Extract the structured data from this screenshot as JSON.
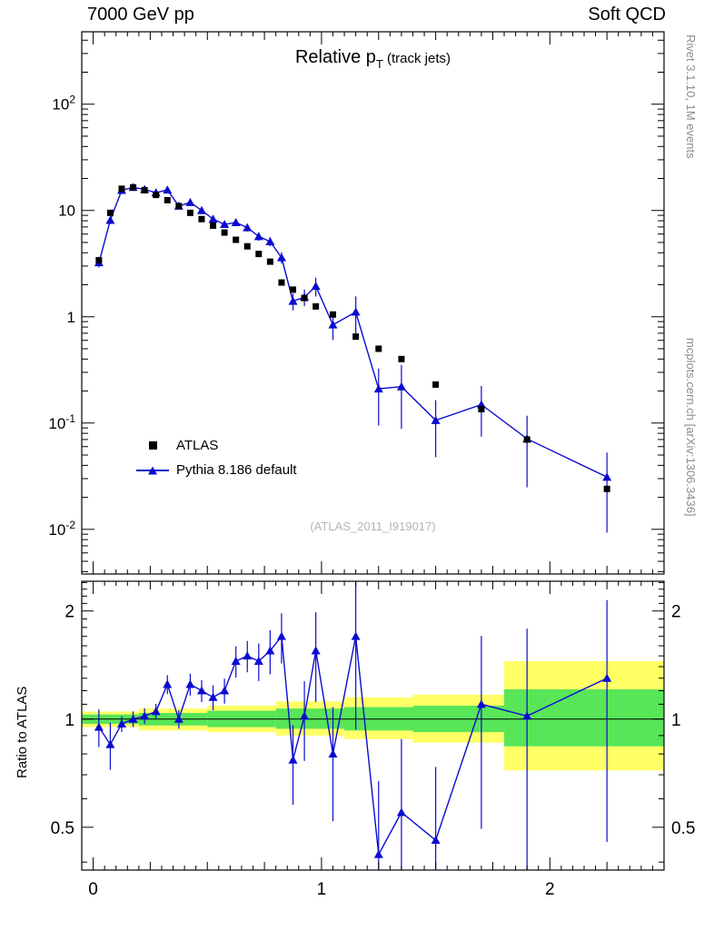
{
  "header": {
    "left": "7000 GeV pp",
    "right": "Soft QCD"
  },
  "title": {
    "pre": "Relative p",
    "sub": "T",
    "post": " (track jets)"
  },
  "side_labels": {
    "top": "Rivet 3.1.10, 1M events",
    "bottom": "mcplots.cern.ch [arXiv:1306.3436]"
  },
  "watermark": "(ATLAS_2011_I919017)",
  "ratio_ylabel": "Ratio to ATLAS",
  "legend": [
    {
      "label": "ATLAS",
      "marker": "square",
      "color": "#000000"
    },
    {
      "label": "Pythia 8.186 default",
      "marker": "triangle-line",
      "color": "#0b0bd0"
    }
  ],
  "colors": {
    "pythia_blue": "#0b0bd0",
    "atlas_black": "#000000",
    "band_yellow": "#ffff66",
    "band_green": "#58e558",
    "side_text_gray": "#8c8c8c",
    "watermark_gray": "#b5b5b5",
    "frame": "#000000"
  },
  "chart_data": [
    {
      "type": "scatter",
      "title": "Relative pT (track jets)",
      "xlabel": "",
      "ylabel": "",
      "ylog": true,
      "xlim": [
        -0.05,
        2.5
      ],
      "ylim": [
        0.0038,
        480
      ],
      "x_tick_values": [
        0,
        1,
        2
      ],
      "x_tick_labels": [
        "0",
        "1",
        "2"
      ],
      "y_tick_values": [
        0.01,
        0.1,
        1,
        10,
        100
      ],
      "y_tick_labels": [
        {
          "base": "10",
          "exp": "-2"
        },
        {
          "base": "10",
          "exp": "-1"
        },
        {
          "base": "1",
          "exp": ""
        },
        {
          "base": "10",
          "exp": ""
        },
        {
          "base": "10",
          "exp": "2"
        }
      ],
      "legend_position": "lower-left",
      "x": [
        0.025,
        0.075,
        0.125,
        0.175,
        0.225,
        0.275,
        0.325,
        0.375,
        0.425,
        0.475,
        0.525,
        0.575,
        0.625,
        0.675,
        0.725,
        0.775,
        0.825,
        0.875,
        0.925,
        0.975,
        1.05,
        1.15,
        1.25,
        1.35,
        1.5,
        1.7,
        1.9,
        2.25
      ],
      "series": [
        {
          "name": "ATLAS",
          "marker": "square",
          "color": "#000000",
          "y": [
            3.4,
            9.5,
            16.0,
            16.5,
            15.5,
            14.0,
            12.5,
            11.0,
            9.5,
            8.3,
            7.2,
            6.2,
            5.3,
            4.6,
            3.9,
            3.3,
            2.1,
            1.8,
            1.5,
            1.25,
            1.05,
            0.65,
            0.5,
            0.4,
            0.23,
            0.135,
            0.07,
            0.024
          ]
        },
        {
          "name": "Pythia 8.186 default",
          "marker": "triangle",
          "color": "#0b0bd0",
          "y": [
            3.23,
            8.1,
            15.5,
            16.5,
            15.8,
            14.7,
            15.6,
            11.0,
            11.9,
            10.0,
            8.3,
            7.4,
            7.7,
            6.9,
            5.7,
            5.1,
            3.6,
            1.4,
            1.53,
            1.94,
            0.84,
            1.11,
            0.21,
            0.22,
            0.106,
            0.149,
            0.071,
            0.031
          ],
          "yerr_frac": [
            0.1,
            0.08,
            0.04,
            0.04,
            0.04,
            0.04,
            0.04,
            0.05,
            0.05,
            0.05,
            0.06,
            0.06,
            0.07,
            0.08,
            0.09,
            0.1,
            0.12,
            0.18,
            0.18,
            0.2,
            0.28,
            0.4,
            0.55,
            0.6,
            0.55,
            0.5,
            0.65,
            0.7
          ]
        }
      ]
    },
    {
      "type": "ratio",
      "ylabel": "Ratio to ATLAS",
      "ylog": true,
      "ylim": [
        0.38,
        2.42
      ],
      "y_tick_values": [
        0.5,
        1,
        2
      ],
      "y_tick_labels": [
        "0.5",
        "1",
        "2"
      ],
      "reference_line": 1,
      "x": [
        0.025,
        0.075,
        0.125,
        0.175,
        0.225,
        0.275,
        0.325,
        0.375,
        0.425,
        0.475,
        0.525,
        0.575,
        0.625,
        0.675,
        0.725,
        0.775,
        0.825,
        0.875,
        0.925,
        0.975,
        1.05,
        1.15,
        1.25,
        1.35,
        1.5,
        1.7,
        1.9,
        2.25
      ],
      "ratio": [
        0.95,
        0.85,
        0.97,
        1.0,
        1.02,
        1.05,
        1.25,
        1.0,
        1.25,
        1.2,
        1.15,
        1.2,
        1.45,
        1.5,
        1.45,
        1.55,
        1.7,
        0.77,
        1.02,
        1.55,
        0.8,
        1.7,
        0.42,
        0.55,
        0.46,
        1.1,
        1.02,
        1.3
      ],
      "ratio_err_frac": [
        0.12,
        0.15,
        0.05,
        0.05,
        0.05,
        0.05,
        0.06,
        0.06,
        0.07,
        0.07,
        0.08,
        0.08,
        0.1,
        0.1,
        0.12,
        0.14,
        0.16,
        0.25,
        0.25,
        0.28,
        0.35,
        0.45,
        0.6,
        0.6,
        0.6,
        0.55,
        0.75,
        0.65
      ],
      "bands": [
        {
          "x0": -0.05,
          "x1": 0.2,
          "yellow": [
            0.95,
            1.05
          ],
          "green": [
            0.97,
            1.03
          ]
        },
        {
          "x0": 0.2,
          "x1": 0.5,
          "yellow": [
            0.93,
            1.07
          ],
          "green": [
            0.96,
            1.04
          ]
        },
        {
          "x0": 0.5,
          "x1": 0.8,
          "yellow": [
            0.92,
            1.09
          ],
          "green": [
            0.95,
            1.055
          ]
        },
        {
          "x0": 0.8,
          "x1": 1.1,
          "yellow": [
            0.9,
            1.12
          ],
          "green": [
            0.94,
            1.07
          ]
        },
        {
          "x0": 1.1,
          "x1": 1.4,
          "yellow": [
            0.88,
            1.15
          ],
          "green": [
            0.93,
            1.08
          ]
        },
        {
          "x0": 1.4,
          "x1": 1.8,
          "yellow": [
            0.86,
            1.17
          ],
          "green": [
            0.92,
            1.09
          ]
        },
        {
          "x0": 1.8,
          "x1": 2.5,
          "yellow": [
            0.72,
            1.45
          ],
          "green": [
            0.84,
            1.21
          ]
        }
      ]
    }
  ]
}
